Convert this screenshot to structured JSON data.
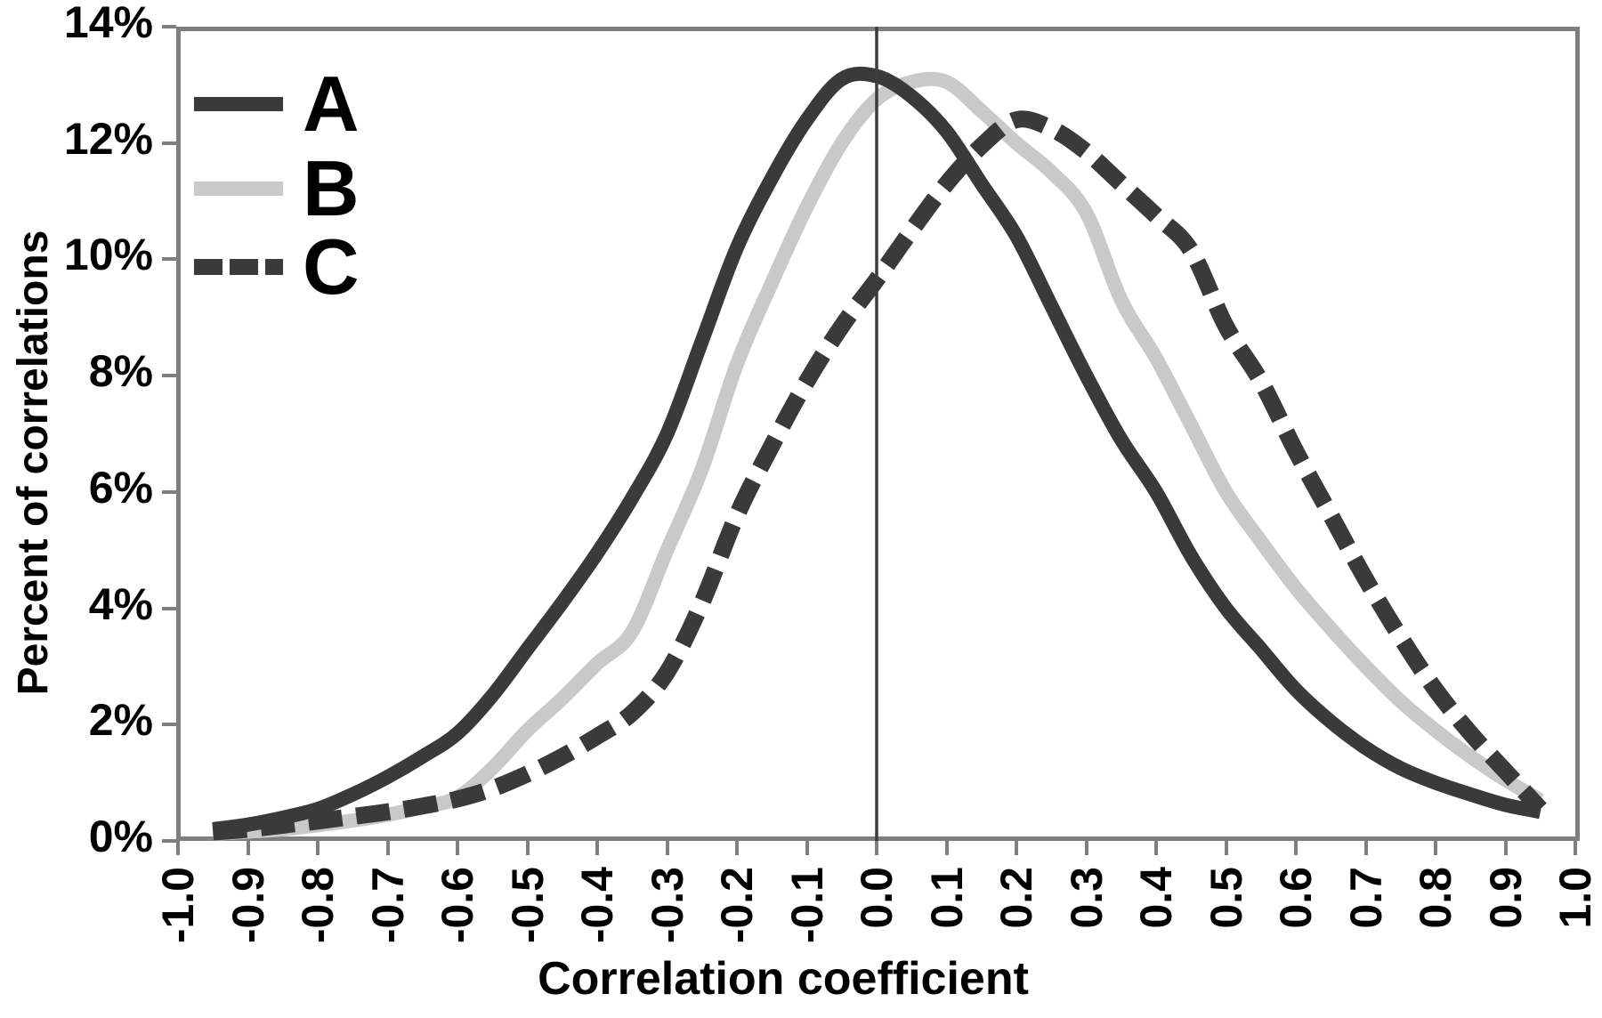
{
  "figure": {
    "background": "#ffffff",
    "frame_color": "#7f7f7f",
    "tick_color": "#7f7f7f",
    "zero_line_color": "#3d3d3d",
    "text_color": "#000000"
  },
  "chart_data": {
    "type": "line",
    "title": "",
    "xlabel": "Correlation coefficient",
    "ylabel": "Percent of correlations",
    "xlim": [
      -1.0,
      1.0
    ],
    "ylim": [
      0,
      14
    ],
    "grid": false,
    "legend_position": "top-left",
    "x_tick_values": [
      -1.0,
      -0.9,
      -0.8,
      -0.7,
      -0.6,
      -0.5,
      -0.4,
      -0.3,
      -0.2,
      -0.1,
      0.0,
      0.1,
      0.2,
      0.3,
      0.4,
      0.5,
      0.6,
      0.7,
      0.8,
      0.9,
      1.0
    ],
    "x_tick_labels": [
      "-1.0",
      "-0.9",
      "-0.8",
      "-0.7",
      "-0.6",
      "-0.5",
      "-0.4",
      "-0.3",
      "-0.2",
      "-0.1",
      "0.0",
      "0.1",
      "0.2",
      "0.3",
      "0.4",
      "0.5",
      "0.6",
      "0.7",
      "0.8",
      "0.9",
      "1.0"
    ],
    "y_tick_values": [
      0,
      2,
      4,
      6,
      8,
      10,
      12,
      14
    ],
    "y_tick_labels": [
      "0%",
      "2%",
      "4%",
      "6%",
      "8%",
      "10%",
      "12%",
      "14%"
    ],
    "x": [
      -0.95,
      -0.9,
      -0.85,
      -0.8,
      -0.75,
      -0.7,
      -0.65,
      -0.6,
      -0.55,
      -0.5,
      -0.45,
      -0.4,
      -0.35,
      -0.3,
      -0.25,
      -0.2,
      -0.15,
      -0.1,
      -0.05,
      0.0,
      0.05,
      0.1,
      0.15,
      0.2,
      0.25,
      0.3,
      0.35,
      0.4,
      0.45,
      0.5,
      0.55,
      0.6,
      0.65,
      0.7,
      0.75,
      0.8,
      0.85,
      0.9,
      0.95
    ],
    "series": [
      {
        "name": "A",
        "line_style": "solid",
        "color": "#3a3a3a",
        "stroke_width": 16,
        "peak": {
          "x": -0.02,
          "value": 13.2
        },
        "values": [
          0.2,
          0.28,
          0.4,
          0.55,
          0.8,
          1.1,
          1.45,
          1.85,
          2.5,
          3.3,
          4.1,
          4.95,
          5.9,
          7.0,
          8.6,
          10.2,
          11.4,
          12.4,
          13.1,
          13.15,
          12.8,
          12.2,
          11.3,
          10.4,
          9.2,
          8.0,
          6.9,
          6.0,
          4.9,
          4.0,
          3.3,
          2.6,
          2.05,
          1.6,
          1.25,
          1.0,
          0.8,
          0.62,
          0.5
        ]
      },
      {
        "name": "B",
        "line_style": "solid",
        "color": "#c9c9c9",
        "stroke_width": 16,
        "peak": {
          "x": 0.08,
          "value": 13.1
        },
        "values": [
          0.12,
          0.16,
          0.2,
          0.27,
          0.35,
          0.45,
          0.58,
          0.75,
          1.25,
          1.9,
          2.45,
          3.05,
          3.6,
          5.0,
          6.4,
          8.2,
          9.6,
          10.9,
          12.0,
          12.75,
          13.05,
          13.05,
          12.55,
          12.0,
          11.5,
          10.8,
          9.3,
          8.3,
          7.15,
          6.0,
          5.15,
          4.35,
          3.65,
          3.0,
          2.4,
          1.9,
          1.45,
          1.05,
          0.7
        ]
      },
      {
        "name": "C",
        "line_style": "dashed",
        "color": "#3a3a3a",
        "stroke_width": 19,
        "dash": [
          38,
          16
        ],
        "peak": {
          "x": 0.2,
          "value": 12.4
        },
        "values": [
          0.15,
          0.2,
          0.27,
          0.34,
          0.42,
          0.5,
          0.6,
          0.72,
          0.9,
          1.15,
          1.45,
          1.8,
          2.2,
          2.9,
          4.1,
          5.6,
          6.8,
          7.9,
          8.85,
          9.65,
          10.5,
          11.3,
          11.95,
          12.4,
          12.25,
          11.85,
          11.3,
          10.75,
          10.15,
          8.85,
          7.9,
          6.7,
          5.6,
          4.5,
          3.5,
          2.6,
          1.85,
          1.2,
          0.55
        ]
      }
    ],
    "annotations": [
      {
        "type": "vline",
        "x": 0.0
      }
    ],
    "legend_entries": [
      "A",
      "B",
      "C"
    ]
  }
}
